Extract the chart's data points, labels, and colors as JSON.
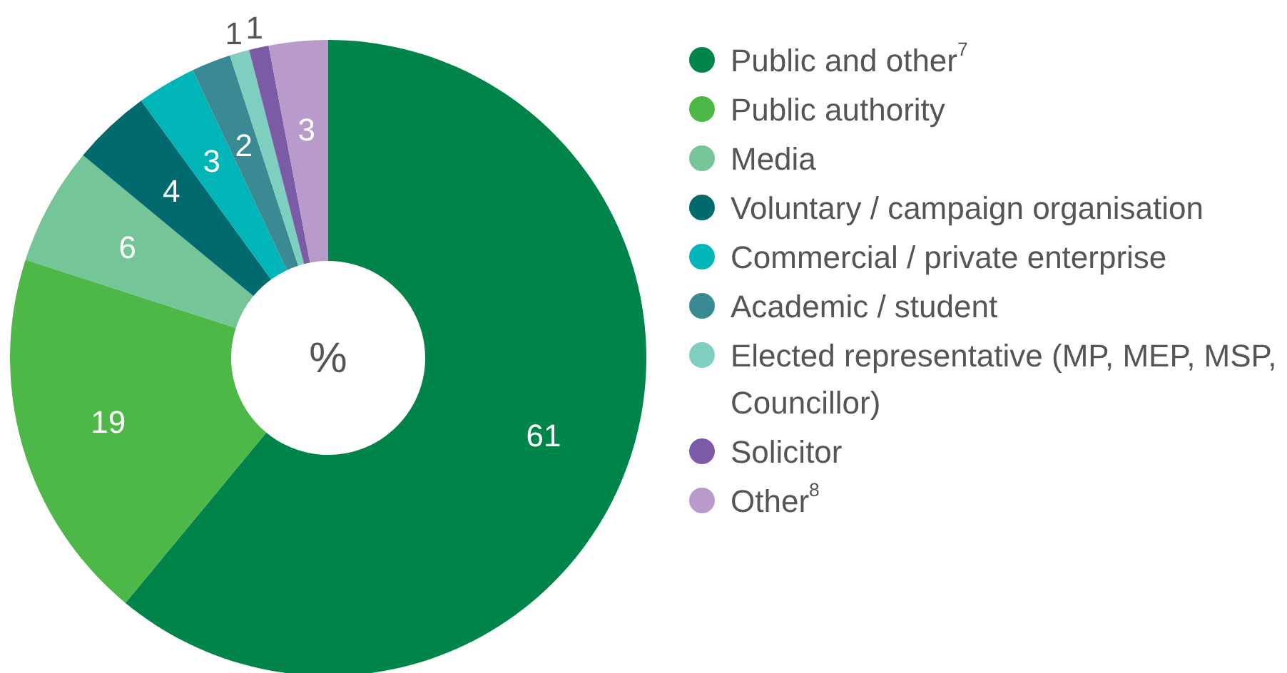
{
  "chart_data": {
    "type": "donut",
    "categories": [
      "Public and other$^{7}$",
      "Public authority",
      "Media",
      "Voluntary / campaign organisation",
      "Commercial / private enterprise",
      "Academic / student",
      "Elected representative (MP, MEP, MSP, Councillor)",
      "Solicitor",
      "Other$^{8}$"
    ],
    "values": [
      61,
      19,
      6,
      4,
      3,
      2,
      1,
      1,
      3
    ],
    "colors": [
      "#00844a",
      "#4db848",
      "#76c598",
      "#006a6e",
      "#00b5b8",
      "#3a8a93",
      "#7fcfc0",
      "#7b5aa6",
      "#b89bcb"
    ],
    "annotations": [
      "%"
    ],
    "data_labels": true,
    "legend": "right"
  }
}
